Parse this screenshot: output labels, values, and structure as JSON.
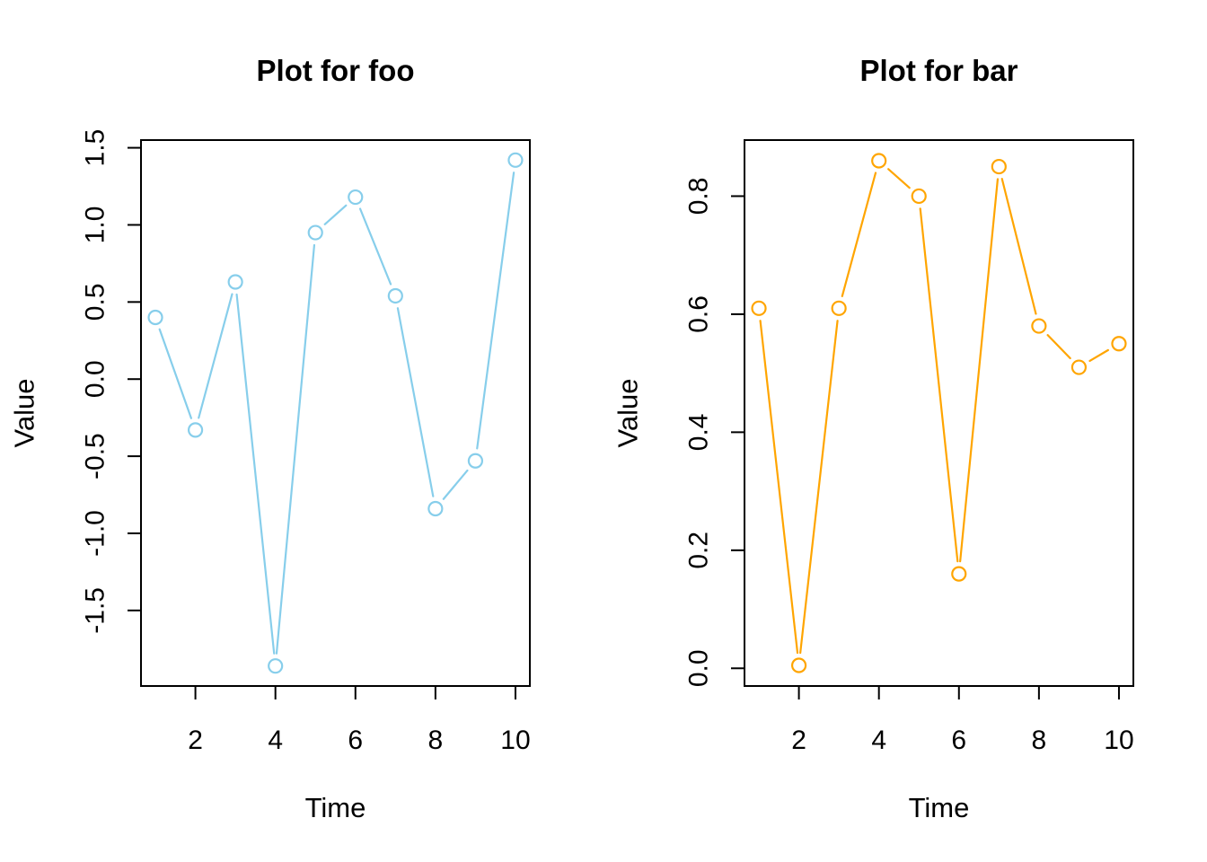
{
  "page": {
    "background": "#FFFFFF",
    "description": "Two R base-graphics line plots side by side"
  },
  "chart_data": [
    {
      "id": "foo",
      "type": "line",
      "title": "Plot for foo",
      "xlabel": "Time",
      "ylabel": "Value",
      "x": [
        1,
        2,
        3,
        4,
        5,
        6,
        7,
        8,
        9,
        10
      ],
      "values": [
        0.4,
        -0.33,
        0.63,
        -1.86,
        0.95,
        1.18,
        0.54,
        -0.84,
        -0.53,
        1.42
      ],
      "color": "#87CEEB",
      "marker": "open-circle",
      "line_style": "solid",
      "plot_type_hint": "points-and-lines",
      "xlim": [
        0.64,
        10.36
      ],
      "ylim": [
        -1.99,
        1.55
      ],
      "xtick_values": [
        2,
        4,
        6,
        8,
        10
      ],
      "xtick_labels": [
        "2",
        "4",
        "6",
        "8",
        "10"
      ],
      "ytick_values": [
        -1.5,
        -1.0,
        -0.5,
        0.0,
        0.5,
        1.0,
        1.5
      ],
      "ytick_labels": [
        "-1.5",
        "-1.0",
        "-0.5",
        "0.0",
        "0.5",
        "1.0",
        "1.5"
      ],
      "grid": false,
      "legend": null
    },
    {
      "id": "bar",
      "type": "line",
      "title": "Plot for bar",
      "xlabel": "Time",
      "ylabel": "Value",
      "x": [
        1,
        2,
        3,
        4,
        5,
        6,
        7,
        8,
        9,
        10
      ],
      "values": [
        0.61,
        0.005,
        0.61,
        0.86,
        0.8,
        0.16,
        0.85,
        0.58,
        0.51,
        0.55
      ],
      "color": "#FFA500",
      "marker": "open-circle",
      "line_style": "solid",
      "plot_type_hint": "points-and-lines",
      "xlim": [
        0.64,
        10.36
      ],
      "ylim": [
        -0.03,
        0.895
      ],
      "xtick_values": [
        2,
        4,
        6,
        8,
        10
      ],
      "xtick_labels": [
        "2",
        "4",
        "6",
        "8",
        "10"
      ],
      "ytick_values": [
        0.0,
        0.2,
        0.4,
        0.6,
        0.8
      ],
      "ytick_labels": [
        "0.0",
        "0.2",
        "0.4",
        "0.6",
        "0.8"
      ],
      "grid": false,
      "legend": null
    }
  ]
}
